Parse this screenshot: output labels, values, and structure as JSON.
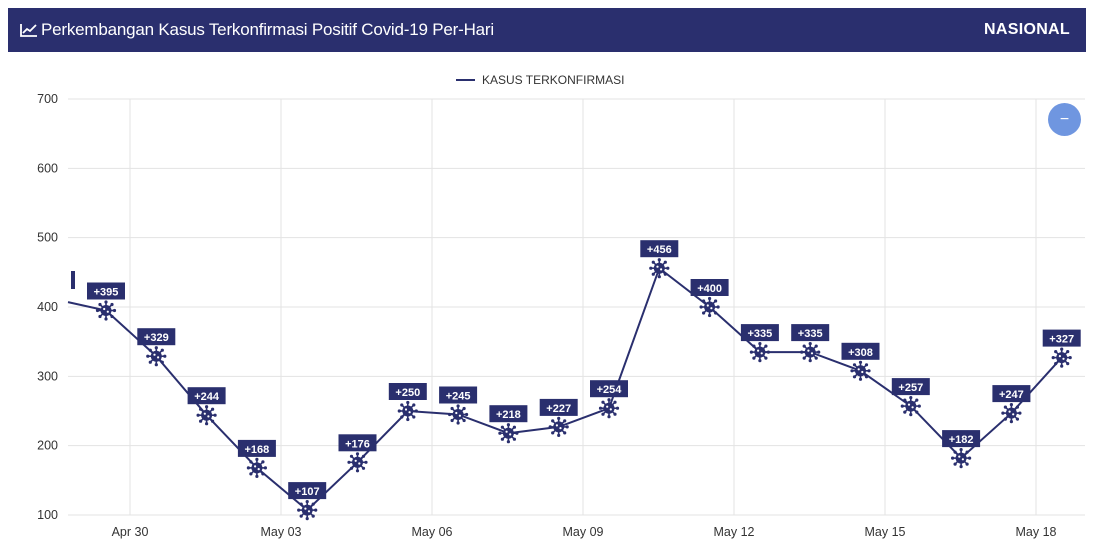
{
  "header": {
    "title": "Perkembangan Kasus Terkonfirmasi Positif Covid-19 Per-Hari",
    "region": "NASIONAL",
    "bg_color": "#2a2f6e",
    "icon": "line-chart-icon"
  },
  "zoom_button": {
    "label": "−",
    "icon": "minus-icon",
    "color": "#6f96e0"
  },
  "chart_data": {
    "type": "line",
    "legend": {
      "label": "KASUS TERKONFIRMASI",
      "position": "top-center"
    },
    "color": "#2a2f6e",
    "marker": "virus-icon",
    "grid": true,
    "ylim": [
      100,
      700
    ],
    "yticks": [
      100,
      200,
      300,
      400,
      500,
      600,
      700
    ],
    "xticks": [
      "Apr 30",
      "May 03",
      "May 06",
      "May 09",
      "May 12",
      "May 15",
      "May 18"
    ],
    "series": [
      {
        "x": [
          "Apr 29",
          "Apr 30",
          "May 01",
          "May 02",
          "May 03",
          "May 04",
          "May 05",
          "May 06",
          "May 07",
          "May 08",
          "May 09",
          "May 10",
          "May 11",
          "May 12",
          "May 13",
          "May 14",
          "May 15",
          "May 16",
          "May 17",
          "May 18"
        ],
        "values": [
          395,
          329,
          244,
          168,
          107,
          176,
          250,
          245,
          218,
          227,
          254,
          456,
          400,
          335,
          335,
          308,
          257,
          182,
          247,
          327
        ],
        "labels": [
          "+395",
          "+329",
          "+244",
          "+168",
          "+107",
          "+176",
          "+250",
          "+245",
          "+218",
          "+227",
          "+254",
          "+456",
          "+400",
          "+335",
          "+335",
          "+308",
          "+257",
          "+182",
          "+247",
          "+327"
        ]
      }
    ],
    "lead_in_value": 407
  }
}
